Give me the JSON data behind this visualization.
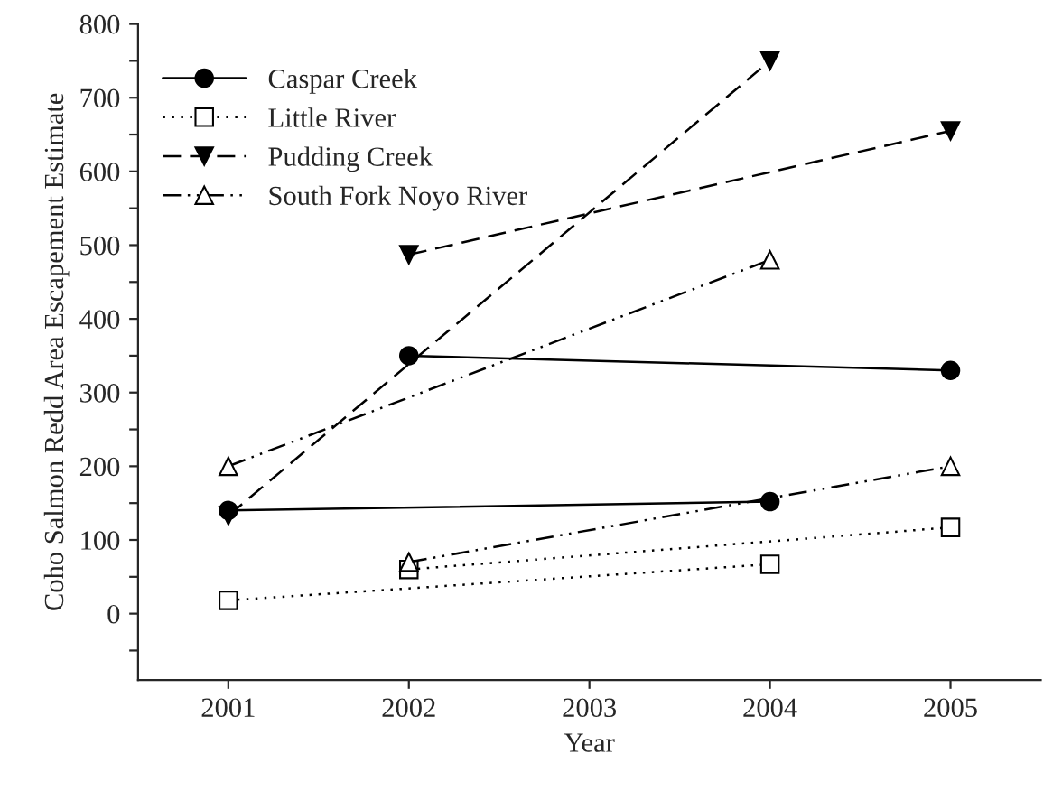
{
  "chart_data": {
    "type": "line",
    "xlabel": "Year",
    "ylabel": "Coho Salmon Redd Area Escapement Estimate",
    "xlim": [
      2000.5,
      2005.5
    ],
    "xticks": [
      2001,
      2002,
      2003,
      2004,
      2005
    ],
    "ylim": [
      -90,
      800
    ],
    "yticks": [
      {
        "value": -50,
        "label": null
      },
      0,
      {
        "value": 50,
        "label": null
      },
      100,
      {
        "value": 150,
        "label": null
      },
      200,
      {
        "value": 250,
        "label": null
      },
      300,
      {
        "value": 350,
        "label": null
      },
      400,
      {
        "value": 450,
        "label": null
      },
      500,
      {
        "value": 550,
        "label": null
      },
      600,
      {
        "value": 650,
        "label": null
      },
      700,
      {
        "value": 750,
        "label": null
      },
      800
    ],
    "grid": false,
    "legend": "top left",
    "series": [
      {
        "name": "Caspar Creek",
        "color": "#000000",
        "marker": "circle",
        "line_style": "solid",
        "x": [
          2001,
          2004
        ],
        "values": [
          140,
          152
        ]
      },
      {
        "name": "Little River",
        "color": "#000000",
        "marker": "square",
        "line_style": "dotted",
        "x": [
          2001,
          2004
        ],
        "values": [
          18,
          67
        ]
      },
      {
        "name": "Pudding Creek",
        "color": "#000000",
        "marker": "triangle_down",
        "line_style": "dashed",
        "x": [
          2001,
          2004
        ],
        "values": [
          133,
          750
        ]
      },
      {
        "name": "South Fork Noyo River",
        "color": "#000000",
        "marker": "triangle",
        "line_style": "dashdot",
        "x": [
          2001,
          2004
        ],
        "values": [
          200,
          480
        ]
      },
      {
        "color": "#000000",
        "marker": "circle",
        "line_style": "solid",
        "x": [
          2002,
          2005
        ],
        "values": [
          350,
          330
        ]
      },
      {
        "color": "#000000",
        "marker": "square",
        "line_style": "dotted",
        "x": [
          2002,
          2005
        ],
        "values": [
          60,
          117
        ]
      },
      {
        "color": "#000000",
        "marker": "triangle_down",
        "line_style": "dashed",
        "x": [
          2002,
          2005
        ],
        "values": [
          487,
          655
        ]
      },
      {
        "color": "#000000",
        "marker": "triangle",
        "line_style": "dashdot",
        "x": [
          2002,
          2005
        ],
        "values": [
          70,
          200
        ]
      }
    ]
  }
}
